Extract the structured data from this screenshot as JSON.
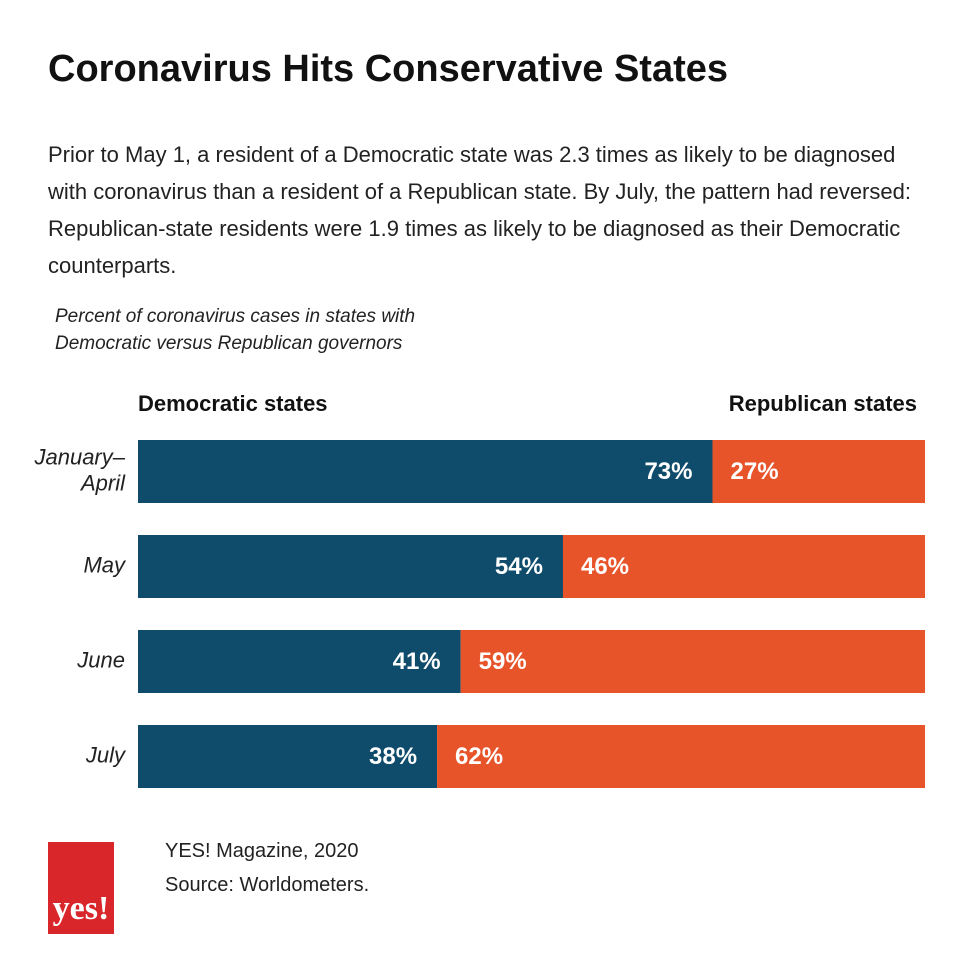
{
  "chart_data": {
    "type": "stacked-bar",
    "orientation": "horizontal",
    "title": "Coronavirus Hits Conservative States",
    "subtitle": "Prior to May 1, a resident of a Democratic state was 2.3 times as likely to be diagnosed with coronavirus than a resident of a Republican state. By July, the pattern had reversed: Republican-state residents were 1.9 times as likely to be diagnosed as their Democratic counterparts.",
    "caption": "Percent of coronavirus cases in states with Democratic versus Republican governors",
    "categories": [
      "January–April",
      "May",
      "June",
      "July"
    ],
    "series": [
      {
        "name": "Democratic states",
        "color": "#0f4c6b",
        "values": [
          73,
          54,
          41,
          38
        ],
        "value_labels": [
          "73%",
          "54%",
          "41%",
          "38%"
        ]
      },
      {
        "name": "Republican states",
        "color": "#e8542a",
        "values": [
          27,
          46,
          59,
          62
        ],
        "value_labels": [
          "27%",
          "46%",
          "59%",
          "62%"
        ]
      }
    ],
    "xlim": [
      0,
      100
    ]
  },
  "footer": {
    "credit": "YES! Magazine, 2020",
    "source": "Source: Worldometers.",
    "logo": "yes!"
  }
}
